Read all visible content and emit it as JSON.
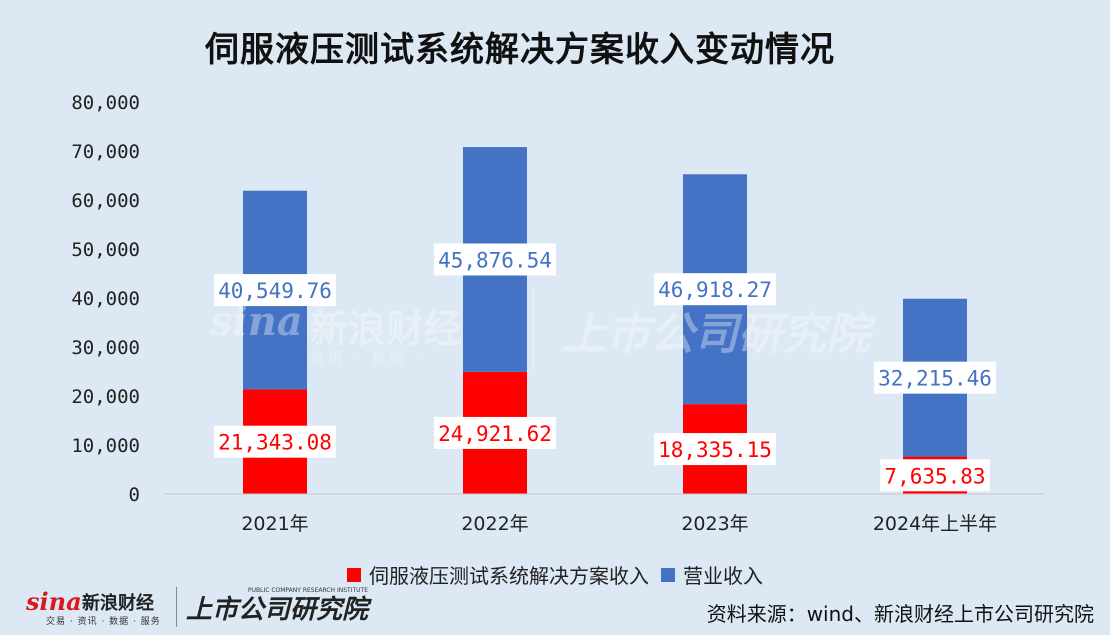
{
  "chart_data": {
    "type": "bar",
    "stacked": true,
    "title": "伺服液压测试系统解决方案收入变动情况",
    "categories": [
      "2021年",
      "2022年",
      "2023年",
      "2024年上半年"
    ],
    "series": [
      {
        "name": "伺服液压测试系统解决方案收入",
        "color": "#ff0000",
        "values": [
          21343.08,
          24921.62,
          18335.15,
          7635.83
        ],
        "labels": [
          "21,343.08",
          "24,921.62",
          "18,335.15",
          "7,635.83"
        ]
      },
      {
        "name": "营业收入",
        "color": "#4472c4",
        "values": [
          40549.76,
          45876.54,
          46918.27,
          32215.46
        ],
        "labels": [
          "40,549.76",
          "45,876.54",
          "46,918.27",
          "32,215.46"
        ]
      }
    ],
    "ylim": [
      0,
      80000
    ],
    "yticks": [
      0,
      10000,
      20000,
      30000,
      40000,
      50000,
      60000,
      70000,
      80000
    ],
    "ytick_labels": [
      "0",
      "10,000",
      "20,000",
      "30,000",
      "40,000",
      "50,000",
      "60,000",
      "70,000",
      "80,000"
    ],
    "grid": false,
    "legend": "bottom",
    "xlabel": "",
    "ylabel": ""
  },
  "source": "资料来源：wind、新浪财经上市公司研究院",
  "logo": {
    "sina": "sina",
    "sina_cn": "新浪财经",
    "sina_sub": "交易 · 资讯 · 数据 · 服务",
    "brand_cn": "上市公司研究院",
    "brand_en": "PUBLIC COMPANY RESEARCH INSTITUTE"
  },
  "watermark": {
    "sina": "sina",
    "sina_cn": "新浪财经",
    "sina_sub": "资讯 · 数据 ·",
    "brand_cn": "上市公司研究院"
  }
}
